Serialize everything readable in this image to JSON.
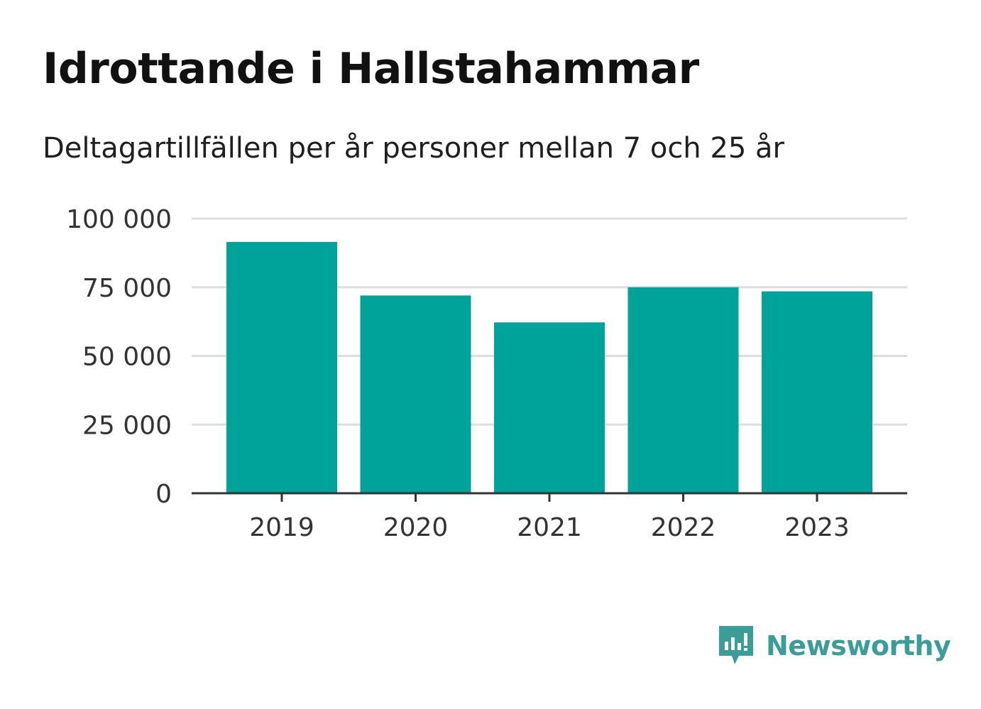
{
  "header": {
    "title": "Idrottande i Hallstahammar",
    "subtitle": "Deltagartillfällen per år personer mellan 7 och 25 år"
  },
  "brand": {
    "name": "Newsworthy",
    "color": "#3a9d98",
    "icon": "newsworthy-chart-bubble-icon"
  },
  "chart_data": {
    "type": "bar",
    "categories": [
      "2019",
      "2020",
      "2021",
      "2022",
      "2023"
    ],
    "values": [
      91500,
      72000,
      62200,
      75000,
      73500
    ],
    "ylim": [
      0,
      100000
    ],
    "yticks": [
      0,
      25000,
      50000,
      75000,
      100000
    ],
    "ytick_labels": [
      "0",
      "25 000",
      "50 000",
      "75 000",
      "100 000"
    ],
    "xlabel": "",
    "ylabel": "",
    "grid": true,
    "bar_color": "#00a39a",
    "grid_color": "#dddddd",
    "axis_color": "#333333"
  }
}
